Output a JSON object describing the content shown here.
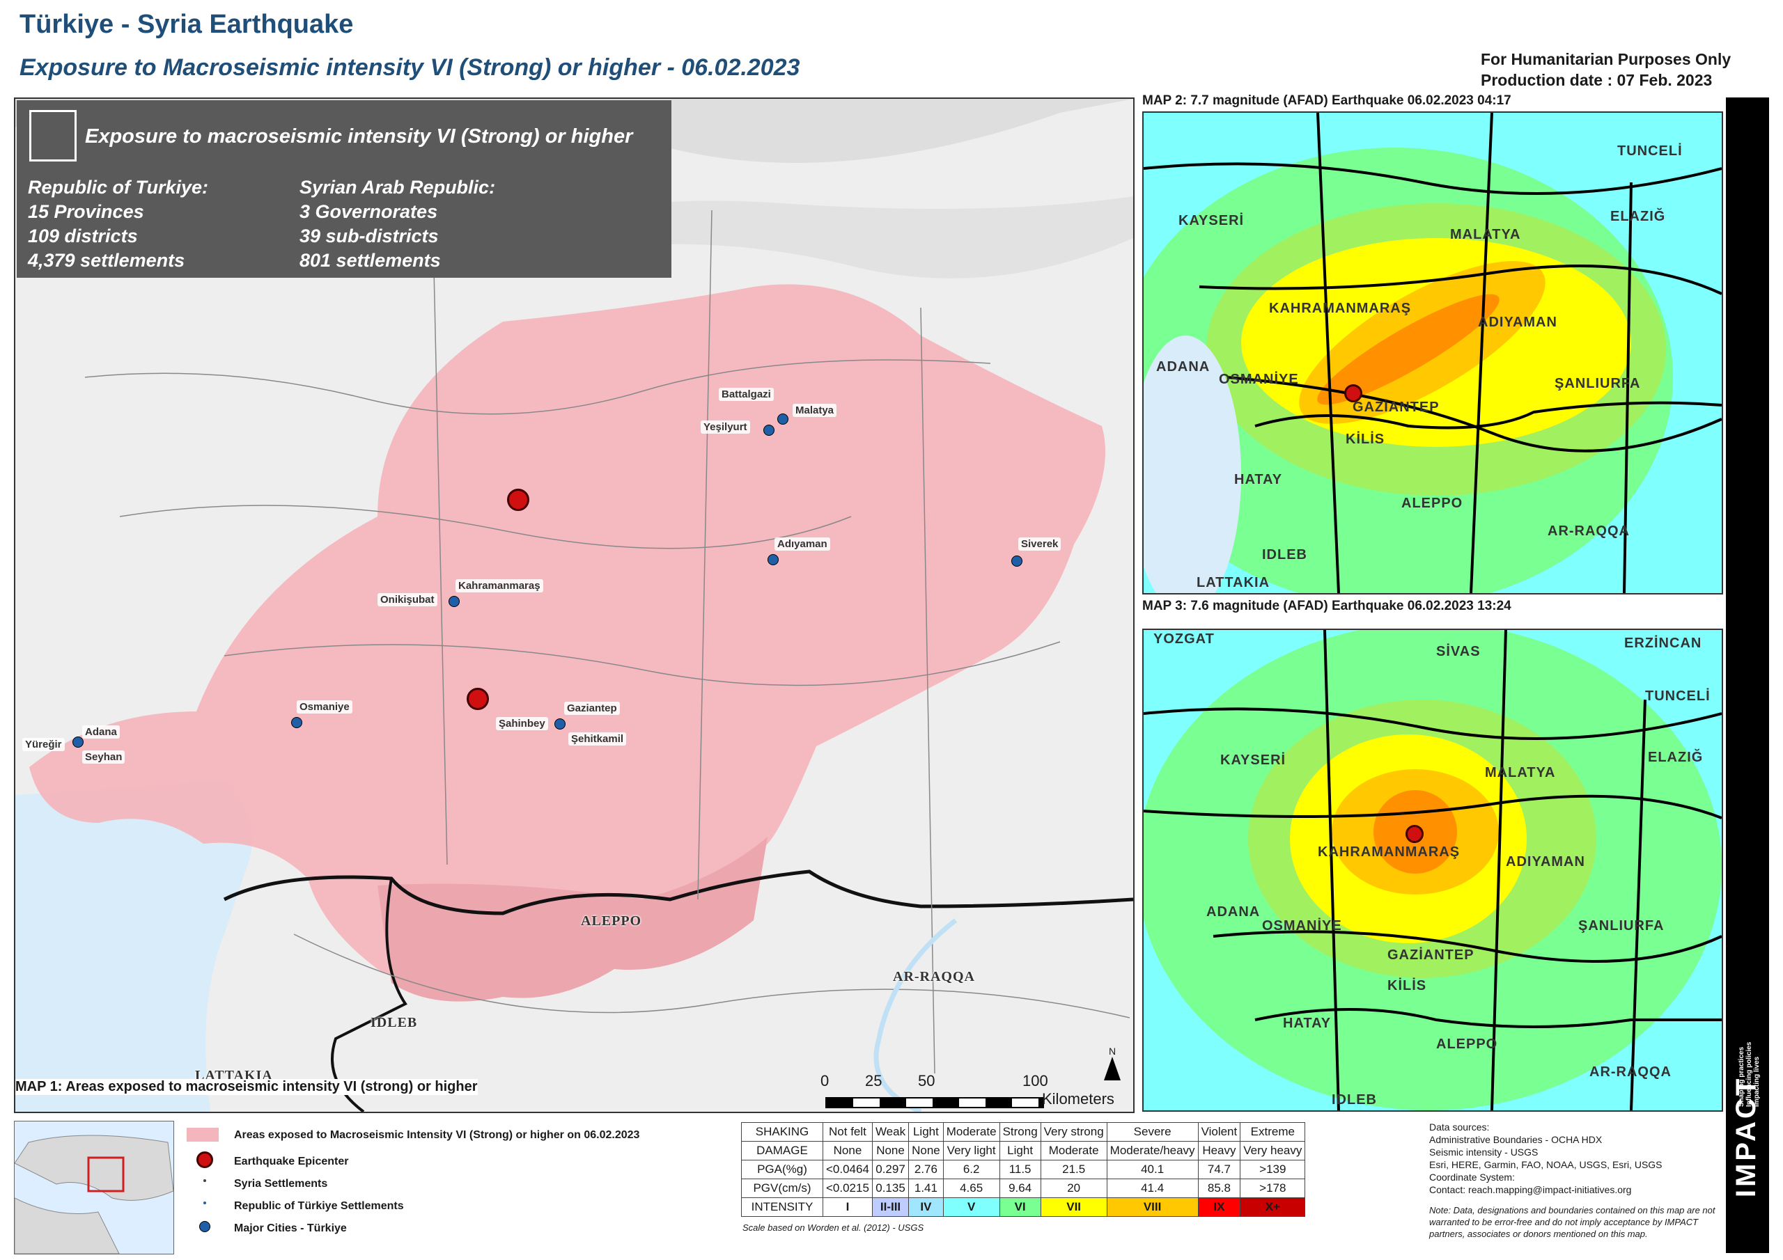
{
  "title": "Türkiye - Syria Earthquake",
  "subtitle": "Exposure to Macroseismic intensity VI (Strong) or higher - 06.02.2023",
  "notice": {
    "line1": "For Humanitarian Purposes Only",
    "line2": "Production date : 07 Feb. 2023"
  },
  "info_box": {
    "header": "Exposure to macroseismic intensity VI (Strong) or higher",
    "turkiye": {
      "title": "Republic of Turkiye:",
      "provinces": "15 Provinces",
      "districts": "109 districts",
      "settlements": "4,379 settlements"
    },
    "syria": {
      "title": "Syrian Arab Republic:",
      "governorates": "3 Governorates",
      "subdistricts": "39 sub-districts",
      "settlements": "801 settlements"
    }
  },
  "map1": {
    "caption": "MAP 1: Areas exposed to macroseismic intensity VI (strong) or higher",
    "cities": [
      "Battalgazi",
      "Malatya",
      "Yeşilyurt",
      "Adıyaman",
      "Siverek",
      "Onikişubat",
      "Kahramanmaraş",
      "Osmaniye",
      "Şahinbey",
      "Gaziantep",
      "Şehitkamil",
      "Adana",
      "Yüreğir",
      "Seyhan"
    ],
    "regions": [
      "ALEPPO",
      "AR-RAQQA",
      "IDLEB",
      "LATTAKIA"
    ],
    "scale": {
      "ticks": [
        "0",
        "25",
        "50",
        "100"
      ],
      "unit": "Kilometers"
    },
    "north": "N"
  },
  "map2": {
    "caption": "MAP 2: 7.7 magnitude (AFAD) Earthquake 06.02.2023 04:17",
    "regions": [
      "TUNCELİ",
      "KAYSERİ",
      "ELAZIĞ",
      "MALATYA",
      "KAHRAMANMARAŞ",
      "ADIYAMAN",
      "ADANA",
      "OSMANİYE",
      "ŞANLIURFA",
      "GAZİANTEP",
      "KİLİS",
      "HATAY",
      "ALEPPO",
      "AR-RAQQA",
      "IDLEB",
      "LATTAKIA"
    ]
  },
  "map3": {
    "caption": "MAP 3: 7.6 magnitude (AFAD) Earthquake 06.02.2023 13:24",
    "regions": [
      "YOZGAT",
      "SİVAS",
      "ERZİNCAN",
      "TUNCELİ",
      "KAYSERİ",
      "ELAZIĞ",
      "MALATYA",
      "KAHRAMANMARAŞ",
      "ADIYAMAN",
      "ADANA",
      "OSMANİYE",
      "ŞANLIURFA",
      "GAZİANTEP",
      "KİLİS",
      "HATAY",
      "ALEPPO",
      "AR-RAQQA",
      "IDLEB"
    ]
  },
  "legend": {
    "exposed": "Areas exposed to Macroseismic Intensity VI (Strong) or higher on 06.02.2023",
    "epicenter": "Earthquake Epicenter",
    "syria_settlements": "Syria Settlements",
    "turkiye_settlements": "Republic of Türkiye Settlements",
    "major_cities": "Major Cities - Türkiye"
  },
  "intensity_table": {
    "rows": [
      {
        "label": "SHAKING",
        "cells": [
          "Not felt",
          "Weak",
          "Light",
          "Moderate",
          "Strong",
          "Very strong",
          "Severe",
          "Violent",
          "Extreme"
        ]
      },
      {
        "label": "DAMAGE",
        "cells": [
          "None",
          "None",
          "None",
          "Very light",
          "Light",
          "Moderate",
          "Moderate/heavy",
          "Heavy",
          "Very heavy"
        ]
      },
      {
        "label": "PGA(%g)",
        "cells": [
          "<0.0464",
          "0.297",
          "2.76",
          "6.2",
          "11.5",
          "21.5",
          "40.1",
          "74.7",
          ">139"
        ]
      },
      {
        "label": "PGV(cm/s)",
        "cells": [
          "<0.0215",
          "0.135",
          "1.41",
          "4.65",
          "9.64",
          "20",
          "41.4",
          "85.8",
          ">178"
        ]
      },
      {
        "label": "INTENSITY",
        "cells": [
          "I",
          "II-III",
          "IV",
          "V",
          "VI",
          "VII",
          "VIII",
          "IX",
          "X+"
        ]
      }
    ],
    "intensity_colors": [
      "#ffffff",
      "#bfccff",
      "#a0e6ff",
      "#80ffff",
      "#7aff93",
      "#ffff00",
      "#ffc800",
      "#ff0000",
      "#c80000"
    ],
    "note": "Scale based on Worden et al. (2012) - USGS"
  },
  "sources": {
    "title": "Data sources:",
    "lines": [
      "Administrative Boundaries - OCHA HDX",
      "Seismic intensity - USGS",
      "Esri, HERE, Garmin, FAO, NOAA, USGS, Esri, USGS",
      "Coordinate System:",
      "Contact: reach.mapping@impact-initiatives.org"
    ],
    "disclaimer": "Note: Data, designations and boundaries contained on this map are not warranted to be error-free and do not imply acceptance by IMPACT partners, associates or donors mentioned on this map."
  },
  "brand": {
    "name": "IMPACT",
    "tagline": "Shaping practices Influencing policies Impacting lives"
  },
  "colors": {
    "title": "#1f4e79",
    "exposure": "#f4b6bd",
    "settlement": "#1f5fa8",
    "epicenter": "#d01010"
  }
}
